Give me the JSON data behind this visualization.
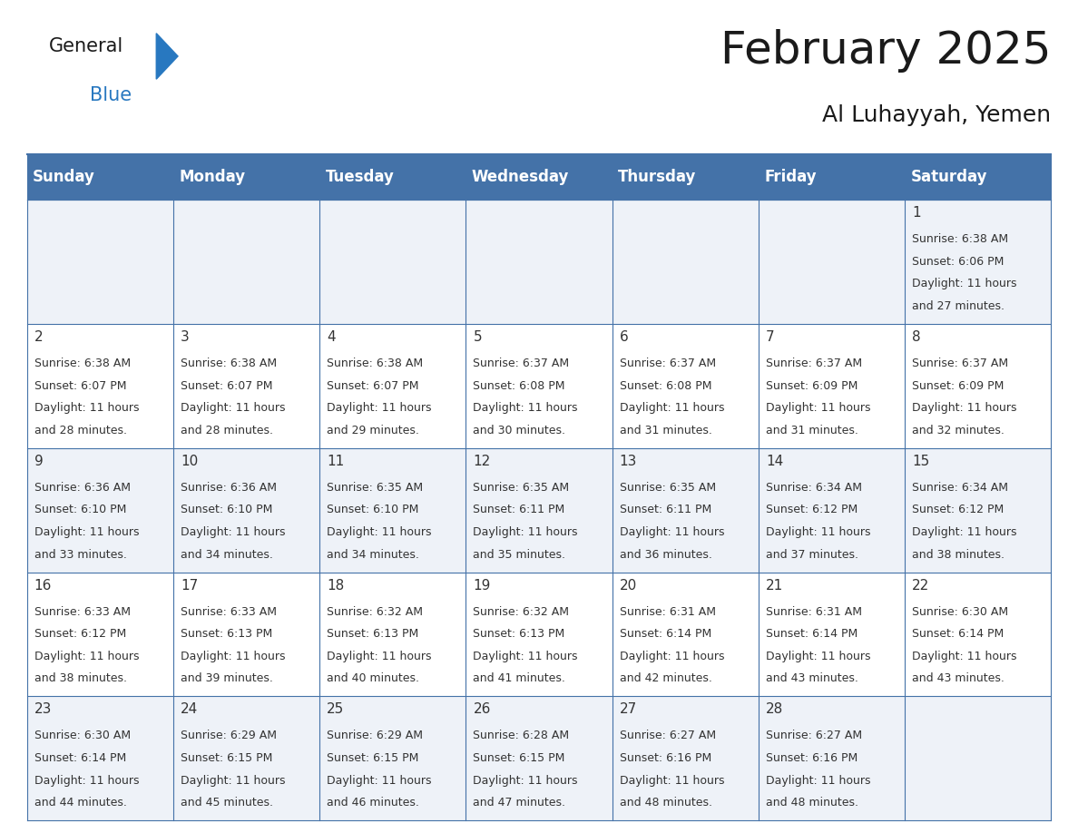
{
  "title": "February 2025",
  "subtitle": "Al Luhayyah, Yemen",
  "header_bg": "#4472a8",
  "header_text_color": "#ffffff",
  "row_bg_light": "#eef2f8",
  "row_bg_white": "#ffffff",
  "grid_line_color": "#4472a8",
  "outer_line_color": "#4472a8",
  "day_names": [
    "Sunday",
    "Monday",
    "Tuesday",
    "Wednesday",
    "Thursday",
    "Friday",
    "Saturday"
  ],
  "days": [
    {
      "day": 1,
      "col": 6,
      "row": 0,
      "sunrise": "6:38 AM",
      "sunset": "6:06 PM",
      "daylight": "11 hours and 27 minutes."
    },
    {
      "day": 2,
      "col": 0,
      "row": 1,
      "sunrise": "6:38 AM",
      "sunset": "6:07 PM",
      "daylight": "11 hours and 28 minutes."
    },
    {
      "day": 3,
      "col": 1,
      "row": 1,
      "sunrise": "6:38 AM",
      "sunset": "6:07 PM",
      "daylight": "11 hours and 28 minutes."
    },
    {
      "day": 4,
      "col": 2,
      "row": 1,
      "sunrise": "6:38 AM",
      "sunset": "6:07 PM",
      "daylight": "11 hours and 29 minutes."
    },
    {
      "day": 5,
      "col": 3,
      "row": 1,
      "sunrise": "6:37 AM",
      "sunset": "6:08 PM",
      "daylight": "11 hours and 30 minutes."
    },
    {
      "day": 6,
      "col": 4,
      "row": 1,
      "sunrise": "6:37 AM",
      "sunset": "6:08 PM",
      "daylight": "11 hours and 31 minutes."
    },
    {
      "day": 7,
      "col": 5,
      "row": 1,
      "sunrise": "6:37 AM",
      "sunset": "6:09 PM",
      "daylight": "11 hours and 31 minutes."
    },
    {
      "day": 8,
      "col": 6,
      "row": 1,
      "sunrise": "6:37 AM",
      "sunset": "6:09 PM",
      "daylight": "11 hours and 32 minutes."
    },
    {
      "day": 9,
      "col": 0,
      "row": 2,
      "sunrise": "6:36 AM",
      "sunset": "6:10 PM",
      "daylight": "11 hours and 33 minutes."
    },
    {
      "day": 10,
      "col": 1,
      "row": 2,
      "sunrise": "6:36 AM",
      "sunset": "6:10 PM",
      "daylight": "11 hours and 34 minutes."
    },
    {
      "day": 11,
      "col": 2,
      "row": 2,
      "sunrise": "6:35 AM",
      "sunset": "6:10 PM",
      "daylight": "11 hours and 34 minutes."
    },
    {
      "day": 12,
      "col": 3,
      "row": 2,
      "sunrise": "6:35 AM",
      "sunset": "6:11 PM",
      "daylight": "11 hours and 35 minutes."
    },
    {
      "day": 13,
      "col": 4,
      "row": 2,
      "sunrise": "6:35 AM",
      "sunset": "6:11 PM",
      "daylight": "11 hours and 36 minutes."
    },
    {
      "day": 14,
      "col": 5,
      "row": 2,
      "sunrise": "6:34 AM",
      "sunset": "6:12 PM",
      "daylight": "11 hours and 37 minutes."
    },
    {
      "day": 15,
      "col": 6,
      "row": 2,
      "sunrise": "6:34 AM",
      "sunset": "6:12 PM",
      "daylight": "11 hours and 38 minutes."
    },
    {
      "day": 16,
      "col": 0,
      "row": 3,
      "sunrise": "6:33 AM",
      "sunset": "6:12 PM",
      "daylight": "11 hours and 38 minutes."
    },
    {
      "day": 17,
      "col": 1,
      "row": 3,
      "sunrise": "6:33 AM",
      "sunset": "6:13 PM",
      "daylight": "11 hours and 39 minutes."
    },
    {
      "day": 18,
      "col": 2,
      "row": 3,
      "sunrise": "6:32 AM",
      "sunset": "6:13 PM",
      "daylight": "11 hours and 40 minutes."
    },
    {
      "day": 19,
      "col": 3,
      "row": 3,
      "sunrise": "6:32 AM",
      "sunset": "6:13 PM",
      "daylight": "11 hours and 41 minutes."
    },
    {
      "day": 20,
      "col": 4,
      "row": 3,
      "sunrise": "6:31 AM",
      "sunset": "6:14 PM",
      "daylight": "11 hours and 42 minutes."
    },
    {
      "day": 21,
      "col": 5,
      "row": 3,
      "sunrise": "6:31 AM",
      "sunset": "6:14 PM",
      "daylight": "11 hours and 43 minutes."
    },
    {
      "day": 22,
      "col": 6,
      "row": 3,
      "sunrise": "6:30 AM",
      "sunset": "6:14 PM",
      "daylight": "11 hours and 43 minutes."
    },
    {
      "day": 23,
      "col": 0,
      "row": 4,
      "sunrise": "6:30 AM",
      "sunset": "6:14 PM",
      "daylight": "11 hours and 44 minutes."
    },
    {
      "day": 24,
      "col": 1,
      "row": 4,
      "sunrise": "6:29 AM",
      "sunset": "6:15 PM",
      "daylight": "11 hours and 45 minutes."
    },
    {
      "day": 25,
      "col": 2,
      "row": 4,
      "sunrise": "6:29 AM",
      "sunset": "6:15 PM",
      "daylight": "11 hours and 46 minutes."
    },
    {
      "day": 26,
      "col": 3,
      "row": 4,
      "sunrise": "6:28 AM",
      "sunset": "6:15 PM",
      "daylight": "11 hours and 47 minutes."
    },
    {
      "day": 27,
      "col": 4,
      "row": 4,
      "sunrise": "6:27 AM",
      "sunset": "6:16 PM",
      "daylight": "11 hours and 48 minutes."
    },
    {
      "day": 28,
      "col": 5,
      "row": 4,
      "sunrise": "6:27 AM",
      "sunset": "6:16 PM",
      "daylight": "11 hours and 48 minutes."
    }
  ],
  "num_rows": 5,
  "num_cols": 7,
  "logo_general_color": "#1a1a1a",
  "logo_blue_color": "#2878c0",
  "logo_triangle_color": "#2878c0",
  "title_fontsize": 36,
  "subtitle_fontsize": 18,
  "header_fontsize": 12,
  "day_num_fontsize": 11,
  "info_fontsize": 9,
  "text_color": "#333333"
}
